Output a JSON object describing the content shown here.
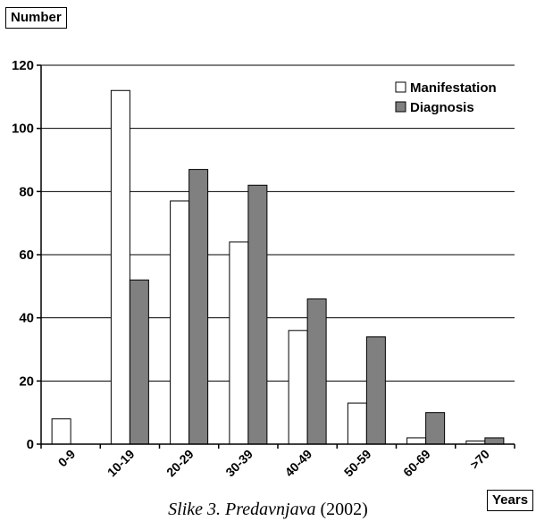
{
  "chart_data": {
    "type": "bar",
    "ylabel": "Number",
    "xlabel": "Years",
    "categories": [
      "0-9",
      "10-19",
      "20-29",
      "30-39",
      "40-49",
      "50-59",
      "60-69",
      ">70"
    ],
    "series": [
      {
        "name": "Manifestation",
        "color": "#ffffff",
        "values": [
          8,
          112,
          77,
          64,
          36,
          13,
          2,
          1
        ]
      },
      {
        "name": "Diagnosis",
        "color": "#808080",
        "values": [
          0,
          52,
          87,
          82,
          46,
          34,
          10,
          2
        ]
      }
    ],
    "ylim": [
      0,
      120
    ],
    "yticks": [
      0,
      20,
      40,
      60,
      80,
      100,
      120
    ],
    "grid": true,
    "legend": "top-right"
  },
  "caption": {
    "text": "Slike 3. Predavnjava",
    "year": "(2002)"
  }
}
